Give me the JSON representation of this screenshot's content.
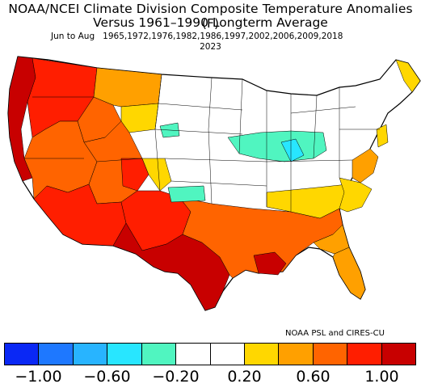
{
  "header": {
    "title_line1": "NOAA/NCEI Climate Division Composite Temperature Anomalies (F)",
    "title_line2": "Versus 1961–1990 Longterm Average",
    "season": "Jun to Aug",
    "years": "1965,1972,1976,1982,1986,1997,2002,2006,2009,2018",
    "subtitle_year": "2023"
  },
  "credit": "NOAA PSL and CIRES-CU",
  "colorbar": {
    "colors": [
      "#0a28f5",
      "#1e78ff",
      "#28b4ff",
      "#28e6ff",
      "#50f5c0",
      "#ffffff",
      "#ffffff",
      "#ffd700",
      "#ffa000",
      "#ff6400",
      "#ff1e00",
      "#c80000"
    ],
    "tick_labels": [
      "−1.00",
      "−0.60",
      "−0.20",
      "0.20",
      "0.60",
      "1.00"
    ]
  },
  "legend_colors": {
    "hot_dark": "#c80000",
    "hot": "#ff1e00",
    "warm": "#ff6400",
    "mild": "#ffa000",
    "slight": "#ffd700",
    "neutral": "#ffffff",
    "cool": "#50f5c0",
    "cooler": "#28e6ff"
  }
}
